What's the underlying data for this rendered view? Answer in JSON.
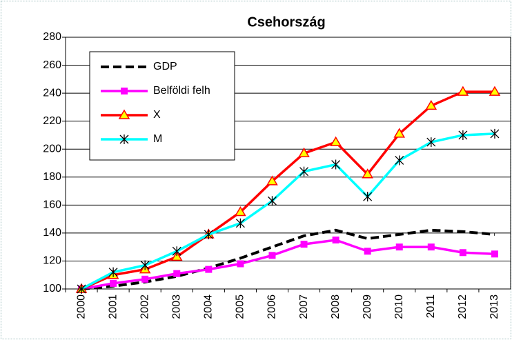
{
  "chart_data": {
    "type": "line",
    "title": "Csehország",
    "categories": [
      "2000",
      "2001",
      "2002",
      "2003",
      "2004",
      "2005",
      "2006",
      "2007",
      "2008",
      "2009",
      "2010",
      "2011",
      "2012",
      "2013"
    ],
    "series": [
      {
        "name": "GDP",
        "color": "#000000",
        "dash": true,
        "marker": null,
        "values": [
          100,
          102,
          105,
          109,
          115,
          122,
          130,
          138,
          142,
          136,
          139,
          142,
          141,
          139
        ]
      },
      {
        "name": "Belföldi felh",
        "color": "#ff00ff",
        "dash": false,
        "marker": "square",
        "values": [
          100,
          104,
          107,
          111,
          114,
          118,
          124,
          132,
          135,
          127,
          130,
          130,
          126,
          125
        ]
      },
      {
        "name": "X",
        "color": "#ff0000",
        "dash": false,
        "marker": "triangle",
        "values": [
          100,
          110,
          114,
          123,
          139,
          155,
          177,
          197,
          205,
          182,
          211,
          231,
          241,
          241
        ]
      },
      {
        "name": "M",
        "color": "#00ffff",
        "dash": false,
        "marker": "star",
        "values": [
          100,
          112,
          117,
          127,
          139,
          147,
          163,
          184,
          189,
          166,
          192,
          205,
          210,
          211
        ]
      }
    ],
    "ylim": [
      100,
      280
    ],
    "yticks": [
      100,
      120,
      140,
      160,
      180,
      200,
      220,
      240,
      260,
      280
    ],
    "grid": true,
    "legend": "upper left"
  }
}
